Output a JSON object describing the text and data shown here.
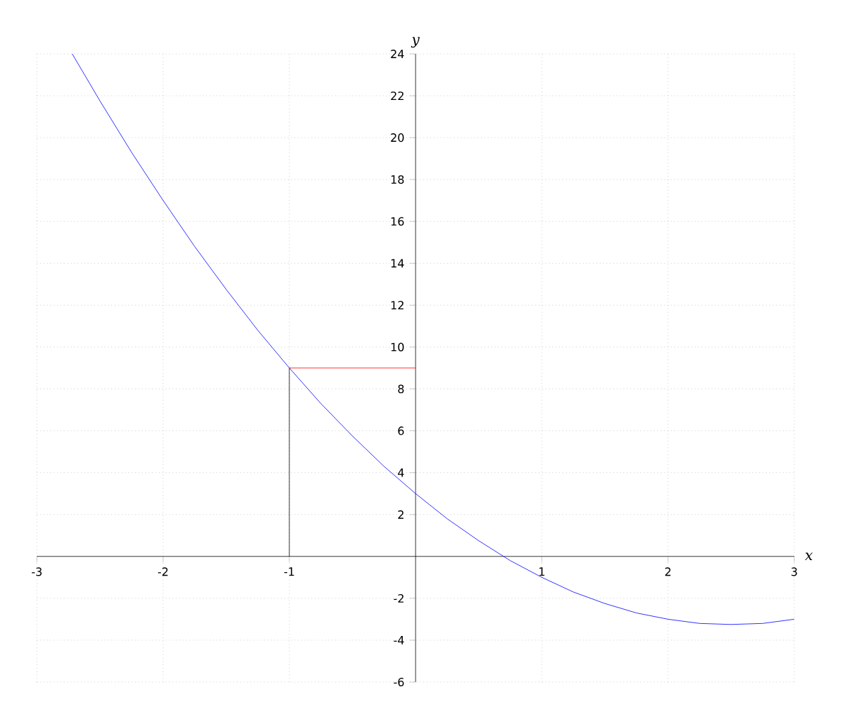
{
  "chart_data": {
    "type": "line",
    "xlabel": "x",
    "ylabel": "y",
    "xlim": [
      -3,
      3
    ],
    "ylim": [
      -6,
      24
    ],
    "xticks": [
      -3,
      -2,
      -1,
      1,
      2,
      3
    ],
    "yticks": [
      -6,
      -4,
      -2,
      2,
      4,
      6,
      8,
      10,
      12,
      14,
      16,
      18,
      20,
      22,
      24
    ],
    "grid": true,
    "series": [
      {
        "color": "#0000ff",
        "x": [
          -2.72,
          -2.5,
          -2.25,
          -2,
          -1.75,
          -1.5,
          -1.25,
          -1,
          -0.75,
          -0.5,
          -0.25,
          0,
          0.25,
          0.5,
          0.75,
          1,
          1.25,
          1.5,
          1.75,
          2,
          2.25,
          2.5,
          2.75,
          3
        ],
        "values": [
          24.0,
          21.75,
          19.3,
          17,
          14.8,
          12.75,
          10.8,
          9,
          7.3,
          5.75,
          4.3,
          3,
          1.8,
          0.75,
          -0.2,
          -1,
          -1.7,
          -2.25,
          -2.7,
          -3,
          -3.2,
          -3.25,
          -3.2,
          -3
        ]
      },
      {
        "color": "#ff0000",
        "x": [
          -1,
          0
        ],
        "values": [
          9,
          9
        ]
      },
      {
        "color": "#000000",
        "x": [
          -1,
          -1
        ],
        "values": [
          0,
          9
        ]
      }
    ]
  }
}
